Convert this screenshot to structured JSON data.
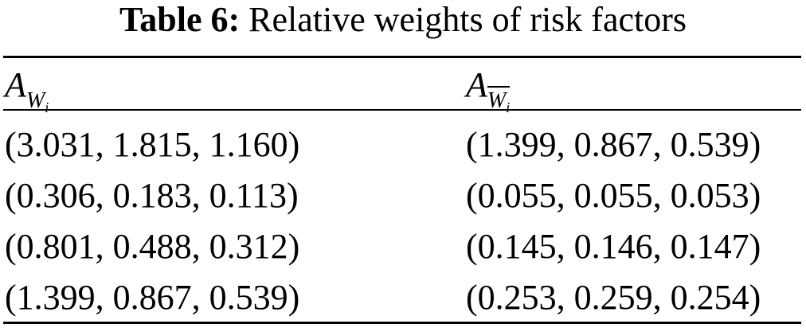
{
  "caption": {
    "label": "Table 6:",
    "text": "Relative weights of risk factors"
  },
  "table": {
    "headers": [
      {
        "main": "A",
        "sub": "W",
        "sub_index": "i",
        "overline": false
      },
      {
        "main": "A",
        "sub": "W",
        "sub_index": "i",
        "overline": true
      }
    ],
    "rows": [
      [
        "(3.031, 1.815, 1.160)",
        "(1.399, 0.867, 0.539)"
      ],
      [
        "(0.306, 0.183, 0.113)",
        "(0.055, 0.055, 0.053)"
      ],
      [
        "(0.801, 0.488, 0.312)",
        "(0.145, 0.146, 0.147)"
      ],
      [
        "(1.399, 0.867, 0.539)",
        "(0.253, 0.259, 0.254)"
      ]
    ]
  }
}
